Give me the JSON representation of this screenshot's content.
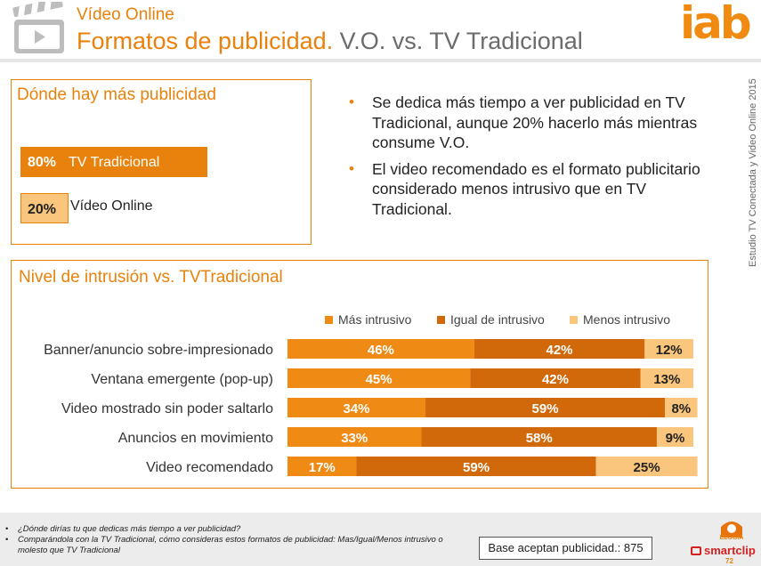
{
  "header": {
    "kicker": "Vídeo Online",
    "title_highlight": "Formatos de publicidad.",
    "title_rest": " V.O. vs. TV Tradicional",
    "logo": "iab",
    "side_text": "Estudio TV Conectada y Video Online 2015"
  },
  "box1": {
    "title": "Dónde hay más publicidad",
    "bars": [
      {
        "pct": "80%",
        "label": "TV Tradicional",
        "value": 80
      },
      {
        "pct": "20%",
        "label": "Vídeo Online",
        "value": 20
      }
    ]
  },
  "bullets": [
    "Se dedica más tiempo a ver publicidad en TV Tradicional, aunque 20% hacerlo más mientras consume V.O.",
    "El video recomendado es el formato publicitario considerado menos intrusivo que en TV Tradicional."
  ],
  "box2": {
    "title": "Nivel de intrusión vs. TVTradicional"
  },
  "chart_data": {
    "type": "bar",
    "orientation": "horizontal",
    "stacked": true,
    "categories": [
      "Banner/anuncio sobre-impresionado",
      "Ventana emergente (pop-up)",
      "Video mostrado sin poder saltarlo",
      "Anuncios en movimiento",
      "Video recomendado"
    ],
    "series": [
      {
        "name": "Más  intrusivo",
        "values": [
          46,
          45,
          34,
          33,
          17
        ],
        "color": "#ef8a14"
      },
      {
        "name": "Igual  de intrusivo",
        "values": [
          42,
          42,
          59,
          58,
          59
        ],
        "color": "#d1690a"
      },
      {
        "name": "Menos  intrusivo",
        "values": [
          12,
          13,
          8,
          9,
          25
        ],
        "color": "#fac57c"
      }
    ],
    "value_suffix": "%",
    "xlim": [
      0,
      100
    ],
    "legend": "top",
    "grid": false
  },
  "footer": {
    "notes": [
      "¿Dónde dirías tu que dedicas más tiempo a ver publicidad?",
      "Comparándola con la TV Tradicional, cómo consideras estos formatos de publicidad: Mas/Igual/Menos intrusivo o molesto que TV Tradicional"
    ],
    "base": "Base aceptan publicidad.: 875",
    "elogia": "ELOGIA",
    "smartclip": "smartclip",
    "page_number": "72"
  },
  "colors": {
    "accent": "#e8820c",
    "more": "#ef8a14",
    "equal": "#d1690a",
    "less": "#fac57c"
  },
  "icons": {
    "header": "clapperboard-icon"
  }
}
